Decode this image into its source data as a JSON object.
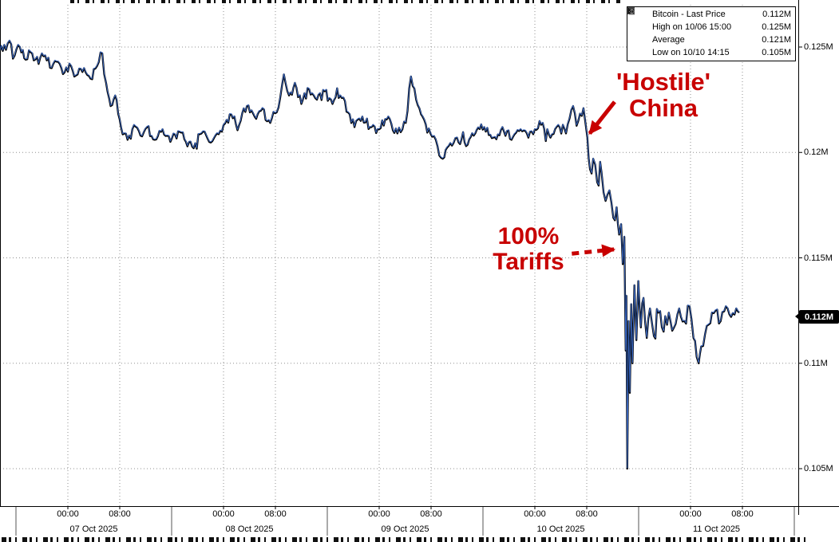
{
  "colors": {
    "background": "#ffffff",
    "line": "#000000",
    "line_highlight": "#3d6fd2",
    "grid": "#8f8f8f",
    "axis": "#000000",
    "annotation": "#c80000",
    "badge_bg": "#000000",
    "badge_text": "#ffffff"
  },
  "chart_data": {
    "type": "line",
    "title": "Bitcoin - Last Price",
    "y_axis": {
      "unit": "M",
      "range": [
        0.1035,
        0.1275
      ],
      "ticks": [
        {
          "p": 0.125,
          "label": "0.125M"
        },
        {
          "p": 0.12,
          "label": "0.12M"
        },
        {
          "p": 0.115,
          "label": "0.115M"
        },
        {
          "p": 0.11,
          "label": "0.11M"
        },
        {
          "p": 0.105,
          "label": "0.105M"
        }
      ]
    },
    "x_axis": {
      "range_hours": [
        13.5,
        130
      ],
      "ticks": [
        {
          "t": 24,
          "label": "00:00"
        },
        {
          "t": 32,
          "label": "08:00"
        },
        {
          "t": 48,
          "label": "00:00"
        },
        {
          "t": 56,
          "label": "08:00"
        },
        {
          "t": 72,
          "label": "00:00"
        },
        {
          "t": 80,
          "label": "08:00"
        },
        {
          "t": 96,
          "label": "00:00"
        },
        {
          "t": 104,
          "label": "08:00"
        },
        {
          "t": 120,
          "label": "00:00"
        },
        {
          "t": 128,
          "label": "08:00"
        }
      ],
      "dates": [
        {
          "t": 28,
          "label": "07 Oct 2025"
        },
        {
          "t": 52,
          "label": "08 Oct 2025"
        },
        {
          "t": 76,
          "label": "09 Oct 2025"
        },
        {
          "t": 100,
          "label": "10 Oct 2025"
        },
        {
          "t": 124,
          "label": "11 Oct 2025"
        }
      ],
      "separators": [
        16,
        40,
        64,
        88,
        112,
        136
      ]
    },
    "legend": [
      {
        "icon": "filled-square",
        "label": "Bitcoin - Last Price",
        "value": "0.112M"
      },
      {
        "icon": "high-marker",
        "label": "High on 10/06 15:00",
        "value": "0.125M"
      },
      {
        "icon": "average-marker",
        "label": "Average",
        "value": "0.121M"
      },
      {
        "icon": "low-marker",
        "label": "Low on 10/10 14:15",
        "value": "0.105M"
      }
    ],
    "last_price": {
      "label": "0.112M",
      "value": 0.1122
    },
    "annotations": {
      "hostile": {
        "line1": "'Hostile'",
        "line2": "China",
        "arrow": {
          "from_t": 108.3,
          "from_p": 0.1224,
          "to_t": 104.45,
          "to_p": 0.1209,
          "style": "solid"
        }
      },
      "tariffs": {
        "line1": "100%",
        "line2": "Tariffs",
        "arrow": {
          "from_t": 101.7,
          "from_p": 0.1152,
          "to_t": 108.2,
          "to_p": 0.1154,
          "style": "dashed"
        }
      }
    },
    "series": [
      {
        "name": "Bitcoin - Last Price",
        "unit": "M",
        "noise_amplitude": 0.00032,
        "points": [
          [
            13.5,
            0.1248
          ],
          [
            14.2,
            0.1251
          ],
          [
            15,
            0.1253
          ],
          [
            15.8,
            0.1246
          ],
          [
            16.6,
            0.125
          ],
          [
            17.5,
            0.1244
          ],
          [
            18.5,
            0.1247
          ],
          [
            19.5,
            0.1242
          ],
          [
            20.5,
            0.1246
          ],
          [
            21.5,
            0.124
          ],
          [
            22.5,
            0.1243
          ],
          [
            23.5,
            0.1238
          ],
          [
            24.5,
            0.1241
          ],
          [
            25.5,
            0.1237
          ],
          [
            26.5,
            0.124
          ],
          [
            27.5,
            0.1235
          ],
          [
            28.5,
            0.1241
          ],
          [
            29.3,
            0.1247
          ],
          [
            29.9,
            0.1233
          ],
          [
            30.6,
            0.1222
          ],
          [
            31.3,
            0.1227
          ],
          [
            32.2,
            0.1212
          ],
          [
            33.2,
            0.1206
          ],
          [
            34.2,
            0.1213
          ],
          [
            35.2,
            0.1208
          ],
          [
            36.2,
            0.1212
          ],
          [
            37.4,
            0.1206
          ],
          [
            38.6,
            0.1211
          ],
          [
            39.8,
            0.1205
          ],
          [
            41,
            0.121
          ],
          [
            42.2,
            0.1205
          ],
          [
            43.4,
            0.1202
          ],
          [
            44.6,
            0.1209
          ],
          [
            45.8,
            0.1205
          ],
          [
            47,
            0.1209
          ],
          [
            48,
            0.1213
          ],
          [
            49.2,
            0.1218
          ],
          [
            50.4,
            0.1213
          ],
          [
            51.6,
            0.1222
          ],
          [
            52.8,
            0.1217
          ],
          [
            54,
            0.1221
          ],
          [
            55.2,
            0.1214
          ],
          [
            56.2,
            0.1219
          ],
          [
            57.3,
            0.1237
          ],
          [
            58.1,
            0.1227
          ],
          [
            59,
            0.1233
          ],
          [
            60,
            0.1223
          ],
          [
            61.2,
            0.123
          ],
          [
            62.4,
            0.1225
          ],
          [
            63.6,
            0.1229
          ],
          [
            64.8,
            0.1223
          ],
          [
            66,
            0.1227
          ],
          [
            67.2,
            0.1219
          ],
          [
            68.2,
            0.1212
          ],
          [
            69.4,
            0.1217
          ],
          [
            70.6,
            0.1212
          ],
          [
            72,
            0.1211
          ],
          [
            73.4,
            0.1217
          ],
          [
            74.8,
            0.1209
          ],
          [
            76.1,
            0.1214
          ],
          [
            76.9,
            0.1236
          ],
          [
            77.7,
            0.1225
          ],
          [
            78.7,
            0.1217
          ],
          [
            79.9,
            0.1209
          ],
          [
            81,
            0.1203
          ],
          [
            81.8,
            0.1197
          ],
          [
            82.7,
            0.1203
          ],
          [
            84,
            0.1207
          ],
          [
            85.4,
            0.1203
          ],
          [
            86.8,
            0.1209
          ],
          [
            88.2,
            0.1212
          ],
          [
            89.6,
            0.1207
          ],
          [
            91,
            0.1212
          ],
          [
            92.4,
            0.1206
          ],
          [
            93.8,
            0.1211
          ],
          [
            95,
            0.1207
          ],
          [
            96,
            0.1211
          ],
          [
            97.2,
            0.1214
          ],
          [
            98.4,
            0.1207
          ],
          [
            99.6,
            0.1213
          ],
          [
            100.8,
            0.1209
          ],
          [
            101.9,
            0.1222
          ],
          [
            102.7,
            0.1215
          ],
          [
            103.5,
            0.1221
          ],
          [
            104.1,
            0.1207
          ],
          [
            104.5,
            0.1192,
            0.0005
          ],
          [
            105,
            0.1197,
            0.0005
          ],
          [
            105.6,
            0.1186,
            0.0005
          ],
          [
            106.3,
            0.119,
            0.0005
          ],
          [
            106.9,
            0.1177,
            0.0005
          ],
          [
            107.5,
            0.1182,
            0.0006
          ],
          [
            108.1,
            0.1169,
            0.0006
          ],
          [
            108.6,
            0.1174,
            0.0006
          ],
          [
            109,
            0.1161,
            0.0007
          ],
          [
            109.3,
            0.1166,
            0.0009
          ],
          [
            109.55,
            0.1147,
            0.0012
          ],
          [
            109.8,
            0.116,
            0.0012
          ],
          [
            110,
            0.1106,
            0.0015
          ],
          [
            110.12,
            0.1132,
            0.0015
          ],
          [
            110.25,
            0.105,
            0.0003
          ],
          [
            110.45,
            0.112,
            0.0015
          ],
          [
            110.65,
            0.1086,
            0.0015
          ],
          [
            110.85,
            0.1128,
            0.0013
          ],
          [
            111.05,
            0.11,
            0.0013
          ],
          [
            111.35,
            0.1137,
            0.0012
          ],
          [
            111.65,
            0.1111,
            0.0011
          ],
          [
            111.95,
            0.1139,
            0.001
          ],
          [
            112.35,
            0.1117,
            0.001
          ],
          [
            112.75,
            0.1131,
            0.0009
          ],
          [
            113.25,
            0.1112,
            0.0009
          ],
          [
            113.75,
            0.1126,
            0.0008
          ],
          [
            114.35,
            0.1113,
            0.0008
          ],
          [
            115.05,
            0.1124,
            0.0007
          ],
          [
            115.85,
            0.1115,
            0.0007
          ],
          [
            116.65,
            0.1124,
            0.0006
          ],
          [
            117.45,
            0.1117,
            0.0006
          ],
          [
            118.25,
            0.1126,
            0.0006
          ],
          [
            119.05,
            0.112,
            0.0005
          ],
          [
            119.85,
            0.1127,
            0.0005
          ],
          [
            120.45,
            0.1112,
            0.0006
          ],
          [
            120.95,
            0.1103,
            0.0006
          ],
          [
            121.25,
            0.11,
            0.0005
          ],
          [
            121.65,
            0.1108,
            0.0005
          ],
          [
            122.25,
            0.1114,
            0.0005
          ],
          [
            123.05,
            0.1119,
            0.0004
          ],
          [
            123.85,
            0.1125,
            0.0004
          ],
          [
            124.65,
            0.112,
            0.0004
          ],
          [
            125.45,
            0.1127,
            0.0004
          ],
          [
            126.25,
            0.1122,
            0.0003
          ],
          [
            127.05,
            0.1126,
            0.0003
          ],
          [
            127.5,
            0.1124,
            0.0002
          ]
        ]
      }
    ]
  }
}
